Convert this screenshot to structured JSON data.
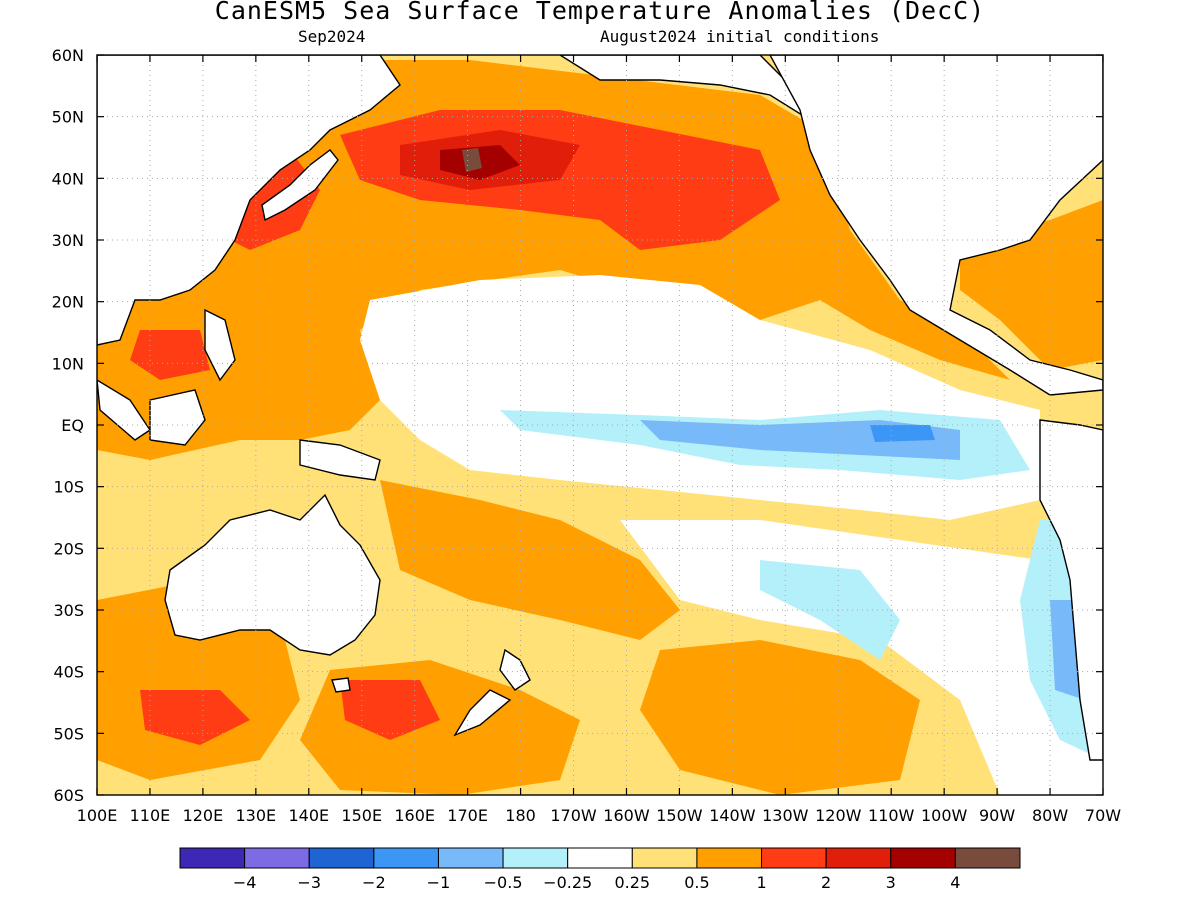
{
  "title": "CanESM5 Sea Surface Temperature Anomalies (DecC)",
  "subtitle_left": "Sep2024",
  "subtitle_right": "August2024 initial conditions",
  "map": {
    "lon_range": [
      100,
      290
    ],
    "lat_range": [
      -60,
      60
    ],
    "lat_labels": [
      "60N",
      "50N",
      "40N",
      "30N",
      "20N",
      "10N",
      "EQ",
      "10S",
      "20S",
      "30S",
      "40S",
      "50S",
      "60S"
    ],
    "lon_labels": [
      "100E",
      "110E",
      "120E",
      "130E",
      "140E",
      "150E",
      "160E",
      "170E",
      "180",
      "170W",
      "160W",
      "150W",
      "140W",
      "130W",
      "120W",
      "110W",
      "100W",
      "90W",
      "80W",
      "70W"
    ],
    "grid": true
  },
  "colorbar": {
    "colors": [
      "#3c28b4",
      "#7d6be6",
      "#1e64d2",
      "#3c96f5",
      "#78b9fa",
      "#b4f0fa",
      "#ffffff",
      "#ffe178",
      "#ffa000",
      "#ff3c14",
      "#e11e0a",
      "#a50000",
      "#784b3c"
    ],
    "labels": [
      "-4",
      "-3",
      "-2",
      "-1",
      "-0.5",
      "-0.25",
      "0.25",
      "0.5",
      "1",
      "2",
      "3",
      "4"
    ]
  },
  "colors": {
    "frame": "#000000",
    "grid": "#aaaaaa",
    "background": "#ffffff"
  }
}
